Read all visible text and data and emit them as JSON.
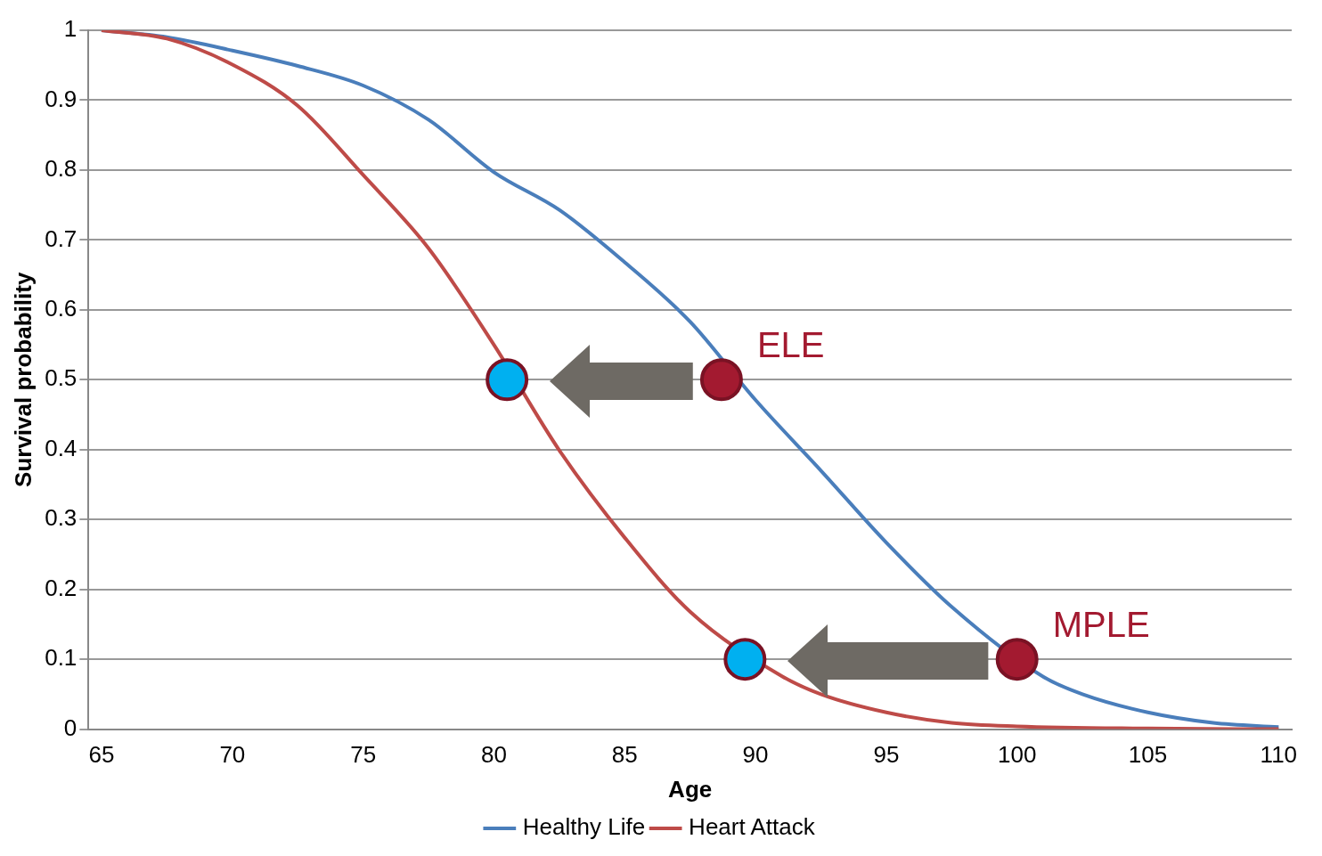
{
  "chart_data": {
    "type": "line",
    "xlabel": "Age",
    "ylabel": "Survival probability",
    "xlim": [
      64.5,
      110.5
    ],
    "xticks": [
      65,
      70,
      75,
      80,
      85,
      90,
      95,
      100,
      105,
      110
    ],
    "ylim": [
      0,
      1
    ],
    "yticks": [
      0,
      0.1,
      0.2,
      0.3,
      0.4,
      0.5,
      0.6,
      0.7,
      0.8,
      0.9,
      1
    ],
    "grid": "y",
    "legend": "bottom",
    "marker": "none",
    "series": [
      {
        "name": "Healthy Life",
        "color": "#4a7ebb",
        "x": [
          65,
          67.5,
          70,
          72.5,
          75,
          77.5,
          80,
          82.5,
          85,
          87.5,
          90,
          92.5,
          95,
          97.5,
          101,
          102.5,
          105,
          107.5,
          110
        ],
        "values": [
          1,
          0.99,
          0.971,
          0.949,
          0.921,
          0.872,
          0.797,
          0.743,
          0.668,
          0.583,
          0.471,
          0.37,
          0.267,
          0.175,
          0.075,
          0.05,
          0.024,
          0.009,
          0.003
        ]
      },
      {
        "name": "Heart Attack",
        "color": "#be4b48",
        "x": [
          65,
          67.5,
          70,
          72.5,
          75,
          77.5,
          80,
          82.5,
          85,
          87.5,
          91,
          92.5,
          95,
          97.5,
          100,
          105,
          110
        ],
        "values": [
          1,
          0.988,
          0.951,
          0.892,
          0.793,
          0.688,
          0.55,
          0.399,
          0.274,
          0.168,
          0.076,
          0.05,
          0.024,
          0.009,
          0.004,
          0.001,
          0
        ]
      },
      {
        "type": "scatter",
        "marker": "circle",
        "color": "#a31a30",
        "x": [
          88.7,
          100
        ],
        "values": [
          0.5,
          0.1
        ]
      },
      {
        "type": "scatter",
        "marker": "circle",
        "color": "#00b0f0",
        "x": [
          80.5,
          89.6
        ],
        "values": [
          0.5,
          0.1
        ]
      }
    ],
    "annotations": [
      {
        "text": "ELE",
        "x": 88.7,
        "y": 0.5
      },
      {
        "text": "MPLE",
        "x": 100,
        "y": 0.1
      }
    ]
  }
}
